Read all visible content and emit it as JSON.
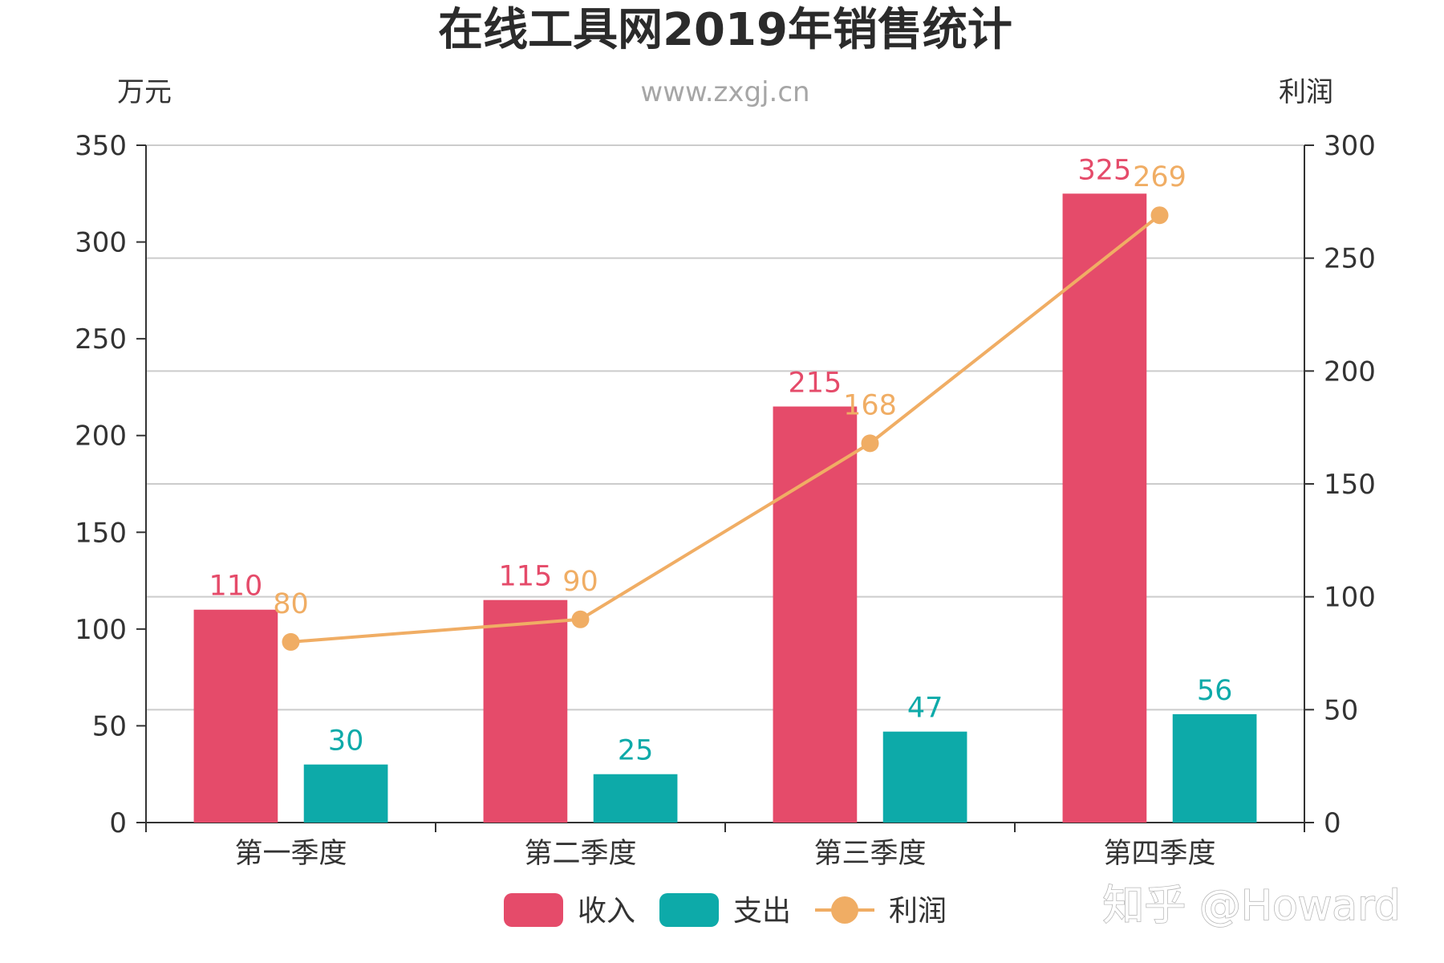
{
  "chart_data": {
    "type": "bar",
    "title": "在线工具网2019年销售统计",
    "subtitle": "www.zxgj.cn",
    "left_axis_label": "万元",
    "right_axis_label": "利润",
    "categories": [
      "第一季度",
      "第二季度",
      "第三季度",
      "第四季度"
    ],
    "left_ylim": [
      0,
      350
    ],
    "left_ticks": [
      0,
      50,
      100,
      150,
      200,
      250,
      300,
      350
    ],
    "right_ylim": [
      0,
      300
    ],
    "right_ticks": [
      0,
      50,
      100,
      150,
      200,
      250,
      300
    ],
    "grid": true,
    "legend_position": "bottom",
    "series": [
      {
        "name": "收入",
        "type": "bar",
        "axis": "left",
        "color": "#e54b6a",
        "values": [
          110,
          115,
          215,
          325
        ]
      },
      {
        "name": "支出",
        "type": "bar",
        "axis": "left",
        "color": "#0daaa9",
        "values": [
          30,
          25,
          47,
          56
        ]
      },
      {
        "name": "利润",
        "type": "line",
        "axis": "right",
        "color": "#f0ad64",
        "values": [
          80,
          90,
          168,
          269
        ]
      }
    ]
  },
  "watermark": "知乎 @Howard"
}
